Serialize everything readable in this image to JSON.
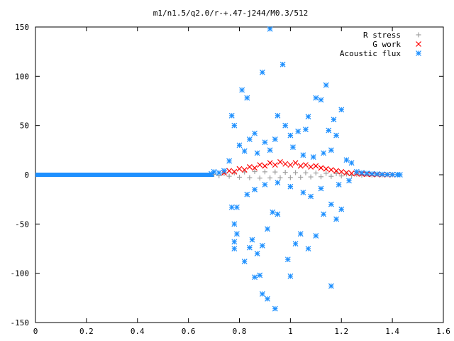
{
  "chart_data": {
    "type": "scatter",
    "title": "m1/n1.5/q2.0/r-+.47-j244/M0.3/512",
    "xlabel": "",
    "ylabel": "",
    "xlim": [
      0,
      1.6
    ],
    "ylim": [
      -150,
      150
    ],
    "x_ticks": [
      "0",
      "0.2",
      "0.4",
      "0.6",
      "0.8",
      "1",
      "1.2",
      "1.4",
      "1.6"
    ],
    "y_ticks": [
      "150",
      "100",
      "50",
      "0",
      "-50",
      "-100",
      "-150"
    ],
    "grid": false,
    "legend_position": "top-right",
    "series": [
      {
        "name": "R stress",
        "marker": "plus",
        "color": "#a0a0a0",
        "points": [
          [
            0.7,
            0.5
          ],
          [
            0.72,
            -1.0
          ],
          [
            0.74,
            1.2
          ],
          [
            0.76,
            -1.5
          ],
          [
            0.78,
            2.0
          ],
          [
            0.8,
            -2.5
          ],
          [
            0.82,
            2.8
          ],
          [
            0.84,
            -3.0
          ],
          [
            0.86,
            3.2
          ],
          [
            0.88,
            -3.4
          ],
          [
            0.9,
            3.0
          ],
          [
            0.92,
            -3.2
          ],
          [
            0.94,
            2.8
          ],
          [
            0.96,
            -3.0
          ],
          [
            0.98,
            2.5
          ],
          [
            1.0,
            -2.8
          ],
          [
            1.02,
            2.2
          ],
          [
            1.04,
            -2.5
          ],
          [
            1.06,
            2.0
          ],
          [
            1.08,
            -2.2
          ],
          [
            1.1,
            1.8
          ],
          [
            1.12,
            -2.0
          ],
          [
            1.14,
            1.5
          ],
          [
            1.16,
            -1.6
          ],
          [
            1.18,
            1.2
          ],
          [
            1.2,
            -1.2
          ],
          [
            1.22,
            0.8
          ],
          [
            1.24,
            -0.8
          ],
          [
            1.26,
            0.5
          ],
          [
            1.28,
            -0.5
          ],
          [
            1.3,
            0.3
          ],
          [
            1.32,
            -0.3
          ],
          [
            1.34,
            0.2
          ],
          [
            1.36,
            -0.2
          ],
          [
            1.38,
            0.1
          ],
          [
            1.4,
            0.0
          ],
          [
            1.42,
            0.0
          ]
        ]
      },
      {
        "name": "G work",
        "marker": "cross",
        "color": "#ff0000",
        "points": [
          [
            0.74,
            2
          ],
          [
            0.76,
            4
          ],
          [
            0.78,
            3
          ],
          [
            0.8,
            6
          ],
          [
            0.82,
            5
          ],
          [
            0.84,
            8
          ],
          [
            0.86,
            7
          ],
          [
            0.88,
            10
          ],
          [
            0.9,
            9
          ],
          [
            0.92,
            12
          ],
          [
            0.94,
            10
          ],
          [
            0.96,
            13
          ],
          [
            0.98,
            11
          ],
          [
            1.0,
            10
          ],
          [
            1.02,
            12
          ],
          [
            1.04,
            9
          ],
          [
            1.06,
            10
          ],
          [
            1.08,
            8
          ],
          [
            1.1,
            9
          ],
          [
            1.12,
            7
          ],
          [
            1.14,
            6
          ],
          [
            1.16,
            5
          ],
          [
            1.18,
            4
          ],
          [
            1.2,
            3
          ],
          [
            1.22,
            2
          ],
          [
            1.24,
            1.5
          ],
          [
            1.26,
            1
          ],
          [
            1.28,
            0.8
          ],
          [
            1.3,
            0.5
          ],
          [
            1.32,
            0.3
          ],
          [
            1.34,
            0.2
          ],
          [
            1.36,
            0.1
          ],
          [
            1.38,
            0.0
          ],
          [
            1.4,
            0.0
          ]
        ]
      },
      {
        "name": "Acoustic flux",
        "marker": "star",
        "color": "#1e90ff",
        "points": [
          [
            0.92,
            148
          ],
          [
            0.81,
            86
          ],
          [
            0.83,
            78
          ],
          [
            0.89,
            104
          ],
          [
            0.97,
            112
          ],
          [
            0.95,
            60
          ],
          [
            0.77,
            60
          ],
          [
            0.78,
            50
          ],
          [
            1.1,
            78
          ],
          [
            1.12,
            76
          ],
          [
            1.14,
            91
          ],
          [
            1.17,
            56
          ],
          [
            1.2,
            66
          ],
          [
            1.15,
            45
          ],
          [
            1.18,
            40
          ],
          [
            1.07,
            59
          ],
          [
            1.06,
            46
          ],
          [
            1.03,
            44
          ],
          [
            1.0,
            40
          ],
          [
            0.98,
            50
          ],
          [
            0.94,
            36
          ],
          [
            0.9,
            33
          ],
          [
            0.86,
            42
          ],
          [
            0.84,
            36
          ],
          [
            0.8,
            30
          ],
          [
            0.82,
            24
          ],
          [
            0.87,
            22
          ],
          [
            0.92,
            25
          ],
          [
            1.01,
            28
          ],
          [
            1.05,
            20
          ],
          [
            1.09,
            18
          ],
          [
            1.13,
            22
          ],
          [
            1.16,
            25
          ],
          [
            1.22,
            15
          ],
          [
            1.24,
            12
          ],
          [
            0.76,
            14
          ],
          [
            0.79,
            -33
          ],
          [
            0.77,
            -33
          ],
          [
            0.78,
            -50
          ],
          [
            0.79,
            -60
          ],
          [
            0.78,
            -68
          ],
          [
            0.78,
            -75
          ],
          [
            0.82,
            -88
          ],
          [
            0.84,
            -74
          ],
          [
            0.85,
            -66
          ],
          [
            0.87,
            -80
          ],
          [
            0.89,
            -72
          ],
          [
            0.91,
            -55
          ],
          [
            0.93,
            -38
          ],
          [
            0.95,
            -40
          ],
          [
            0.99,
            -86
          ],
          [
            1.0,
            -103
          ],
          [
            1.02,
            -70
          ],
          [
            1.04,
            -60
          ],
          [
            1.07,
            -75
          ],
          [
            1.1,
            -62
          ],
          [
            1.13,
            -40
          ],
          [
            1.16,
            -30
          ],
          [
            1.18,
            -45
          ],
          [
            1.2,
            -35
          ],
          [
            0.86,
            -104
          ],
          [
            0.88,
            -102
          ],
          [
            0.89,
            -121
          ],
          [
            0.91,
            -126
          ],
          [
            0.94,
            -136
          ],
          [
            1.16,
            -113
          ],
          [
            0.83,
            -20
          ],
          [
            0.86,
            -15
          ],
          [
            0.9,
            -10
          ],
          [
            0.95,
            -8
          ],
          [
            1.0,
            -12
          ],
          [
            1.05,
            -18
          ],
          [
            1.08,
            -22
          ],
          [
            1.12,
            -14
          ],
          [
            1.19,
            -10
          ],
          [
            1.23,
            -6
          ],
          [
            0.7,
            3
          ],
          [
            0.72,
            2
          ],
          [
            0.74,
            4
          ],
          [
            0.69,
            1
          ],
          [
            1.26,
            3
          ],
          [
            1.28,
            2
          ],
          [
            1.3,
            1.5
          ],
          [
            1.32,
            1
          ],
          [
            1.34,
            0.8
          ],
          [
            1.36,
            0.5
          ],
          [
            1.38,
            0.3
          ],
          [
            1.4,
            0.2
          ],
          [
            1.42,
            0.1
          ],
          [
            1.43,
            0
          ]
        ]
      }
    ],
    "baseline": {
      "color": "#1e90ff",
      "from_x": 0.0,
      "to_x": 0.7,
      "y": 0
    }
  }
}
